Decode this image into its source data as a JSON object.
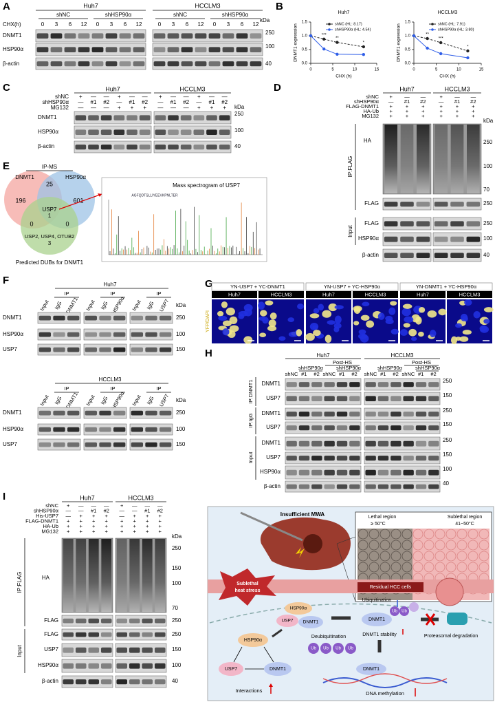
{
  "panel_labels": [
    "A",
    "B",
    "C",
    "D",
    "E",
    "F",
    "G",
    "H",
    "I",
    "J"
  ],
  "A": {
    "cell_lines": [
      "Huh7",
      "HCCLM3"
    ],
    "groups": [
      "shNC",
      "shHSP90α"
    ],
    "chx_label": "CHX(h)",
    "times": [
      "0",
      "3",
      "6",
      "12"
    ],
    "rows": [
      "DNMT1",
      "HSP90α",
      "β-actin"
    ],
    "kda": "kDa",
    "markers": [
      "250",
      "100",
      "40"
    ]
  },
  "chart_data": [
    {
      "type": "line",
      "title": "Huh7",
      "x": [
        0,
        3,
        6,
        12
      ],
      "xlim": [
        0,
        15
      ],
      "xticks": [
        0,
        5,
        10,
        15
      ],
      "ylim": [
        0,
        1.5
      ],
      "yticks": [
        {
          "value": 0,
          "label": "0.0"
        },
        {
          "value": 0.5,
          "label": "0.5"
        },
        {
          "value": 1,
          "label": "1.0"
        },
        {
          "value": 1.5,
          "label": "1.5"
        }
      ],
      "x_label": "CHX (h)",
      "y_label": "DNMT1 expression",
      "series": [
        {
          "name": "shNC (HL: 8.17)",
          "color": "#222222",
          "values": [
            1,
            0.88,
            0.76,
            0.6
          ]
        },
        {
          "name": "shHSP90α (HL: 4.54)",
          "color": "#2f5ee8",
          "values": [
            1,
            0.52,
            0.33,
            0.32
          ]
        }
      ],
      "annotations": [
        "***",
        "**",
        "*"
      ]
    },
    {
      "type": "line",
      "title": "HCCLM3",
      "x": [
        0,
        3,
        6,
        12
      ],
      "xlim": [
        0,
        15
      ],
      "xticks": [
        0,
        5,
        10,
        15
      ],
      "ylim": [
        0,
        1.5
      ],
      "yticks": [
        {
          "value": 0,
          "label": "0.0"
        },
        {
          "value": 0.5,
          "label": "0.5"
        },
        {
          "value": 1,
          "label": "1.0"
        },
        {
          "value": 1.5,
          "label": "1.5"
        }
      ],
      "x_label": "CHX (h)",
      "y_label": "DNMT1 expression",
      "series": [
        {
          "name": "shNC (HL: 7.91)",
          "color": "#222222",
          "values": [
            1,
            0.9,
            0.75,
            0.45
          ]
        },
        {
          "name": "shHSP90α (HL: 3.80)",
          "color": "#2f5ee8",
          "values": [
            1,
            0.55,
            0.35,
            0.2
          ]
        }
      ],
      "annotations": [
        "**",
        "***",
        "*"
      ]
    }
  ],
  "C": {
    "cell_lines": [
      "Huh7",
      "HCCLM3"
    ],
    "kda": "kDa",
    "conditions": [
      {
        "name": "shNC",
        "signs": [
          "+",
          "—",
          "—",
          "+",
          "—",
          "—",
          "+",
          "—",
          "—",
          "+",
          "—",
          "—"
        ]
      },
      {
        "name": "shHSP90α",
        "signs": [
          "—",
          "#1",
          "#2",
          "—",
          "#1",
          "#2",
          "—",
          "#1",
          "#2",
          "—",
          "#1",
          "#2"
        ]
      },
      {
        "name": "MG132",
        "signs": [
          "—",
          "—",
          "—",
          "+",
          "+",
          "+",
          "—",
          "—",
          "—",
          "+",
          "+",
          "+"
        ]
      }
    ],
    "rows": [
      "DNMT1",
      "HSP90α",
      "β-actin"
    ],
    "markers": [
      "250",
      "100",
      "40"
    ]
  },
  "D": {
    "cell_lines": [
      "Huh7",
      "HCCLM3"
    ],
    "kda": "kDa",
    "conditions": [
      {
        "name": "shNC",
        "signs": [
          "+",
          "—",
          "—",
          "+",
          "—",
          "—"
        ]
      },
      {
        "name": "shHSP90α",
        "signs": [
          "—",
          "#1",
          "#2",
          "—",
          "#1",
          "#2"
        ]
      },
      {
        "name": "FLAG-DNMT1",
        "signs": [
          "+",
          "+",
          "+",
          "+",
          "+",
          "+"
        ]
      },
      {
        "name": "HA-Ub",
        "signs": [
          "+",
          "+",
          "+",
          "+",
          "+",
          "+"
        ]
      },
      {
        "name": "MG132",
        "signs": [
          "+",
          "+",
          "+",
          "+",
          "+",
          "+"
        ]
      }
    ],
    "ip_label": "IP:FLAG",
    "input_label": "Input",
    "ha": "HA",
    "ha_markers": [
      "250",
      "100",
      "70"
    ],
    "ip_rows": [
      "FLAG"
    ],
    "ip_markers": [
      "250"
    ],
    "input_rows": [
      "FLAG",
      "HSP90α",
      "β-actin"
    ],
    "input_markers": [
      "250",
      "100",
      "40"
    ]
  },
  "E": {
    "ip_ms": "IP-MS",
    "set_a": "DNMT1",
    "set_b": "HSP90α",
    "only_a": "196",
    "ab": "25",
    "only_b": "601",
    "center_name": "USP7",
    "center_count": "1",
    "ac": "0",
    "bc": "0",
    "set_c_names": "USP2, USP4, OTUB2",
    "only_c": "3",
    "set_c": "Predicted DUBs for DNMT1",
    "spectrum_title": "Mass spectrogram of USP7",
    "sequence": "AGFQDTSLLIYEEVKPNLTER"
  },
  "F": {
    "blocks": [
      {
        "cell_line": "Huh7"
      },
      {
        "cell_line": "HCCLM3"
      }
    ],
    "ip": "IP",
    "lanes": [
      "Input",
      "IgG",
      "DNMT1",
      "Input",
      "IgG",
      "HSP90α",
      "Input",
      "IgG",
      "USP7"
    ],
    "rows": [
      "DNMT1",
      "HSP90α",
      "USP7"
    ],
    "markers": [
      "250",
      "100",
      "150"
    ],
    "kda": "kDa"
  },
  "G": {
    "pairs": [
      "YN-USP7 + YC-DNMT1",
      "YN-USP7 + YC-HSP90α",
      "YN-DNMT1 + YC-HSP90α"
    ],
    "cell_lines": [
      "Huh7",
      "HCCLM3"
    ],
    "stain": "YFP/DAPI"
  },
  "H": {
    "cell_lines": [
      "Huh7",
      "HCCLM3"
    ],
    "post": "Post-HS",
    "sh": "shHSP90α",
    "lanes": [
      "shNC",
      "#1",
      "#2",
      "shNC",
      "#1",
      "#2"
    ],
    "sections": [
      "IP:DNMT1",
      "IP:IgG",
      "Input"
    ],
    "rows": [
      "DNMT1",
      "USP7",
      "DNMT1",
      "USP7",
      "DNMT1",
      "USP7",
      "HSP90α",
      "β-actin"
    ],
    "markers": [
      "250",
      "150",
      "250",
      "150",
      "250",
      "150",
      "100",
      "40"
    ]
  },
  "I": {
    "cell_lines": [
      "Huh7",
      "HCCLM3"
    ],
    "kda": "kDa",
    "conditions": [
      {
        "name": "shNC",
        "signs": [
          "+",
          "—",
          "—",
          "—",
          "+",
          "—",
          "—",
          "—"
        ]
      },
      {
        "name": "shHSP90α",
        "signs": [
          "—",
          "—",
          "#1",
          "#2",
          "—",
          "—",
          "#1",
          "#2"
        ]
      },
      {
        "name": "His-USP7",
        "signs": [
          "—",
          "+",
          "+",
          "+",
          "—",
          "+",
          "+",
          "+"
        ]
      },
      {
        "name": "FLAG-DNMT1",
        "signs": [
          "+",
          "+",
          "+",
          "+",
          "+",
          "+",
          "+",
          "+"
        ]
      },
      {
        "name": "HA-Ub",
        "signs": [
          "+",
          "+",
          "+",
          "+",
          "+",
          "+",
          "+",
          "+"
        ]
      },
      {
        "name": "MG132",
        "signs": [
          "+",
          "+",
          "+",
          "+",
          "+",
          "+",
          "+",
          "+"
        ]
      }
    ],
    "ip_label": "IP:FLAG",
    "input_label": "Input",
    "ha": "HA",
    "ha_markers": [
      "250",
      "150",
      "100",
      "70"
    ],
    "ip_rows": [
      "FLAG"
    ],
    "ip_markers": [
      "250"
    ],
    "input_rows": [
      "FLAG",
      "USP7",
      "HSP90α",
      "β-actin"
    ],
    "input_markers": [
      "250",
      "150",
      "100",
      "40"
    ]
  },
  "J": {
    "mwa": "Insufficient MWA",
    "lethal": "Lethal region",
    "lethal_temp": "≥ 50°C",
    "sublethal": "Sublethal region",
    "sublethal_temp": "41~50°C",
    "heat_stress": [
      "Sublethal",
      "heat stress"
    ],
    "residual": "Residual HCC cells",
    "hsp90": "HSP90α",
    "usp7": "USP7",
    "dnmt1": "DNMT1",
    "interactions": "Interactions",
    "deubiquitination": "Deubiquitination",
    "ubiquitination": "Ubiquitination",
    "stability": "DNMT1 stability",
    "degradation": "Proteasomal degradation",
    "methylation": "DNA methylation",
    "ub": "Ub"
  }
}
